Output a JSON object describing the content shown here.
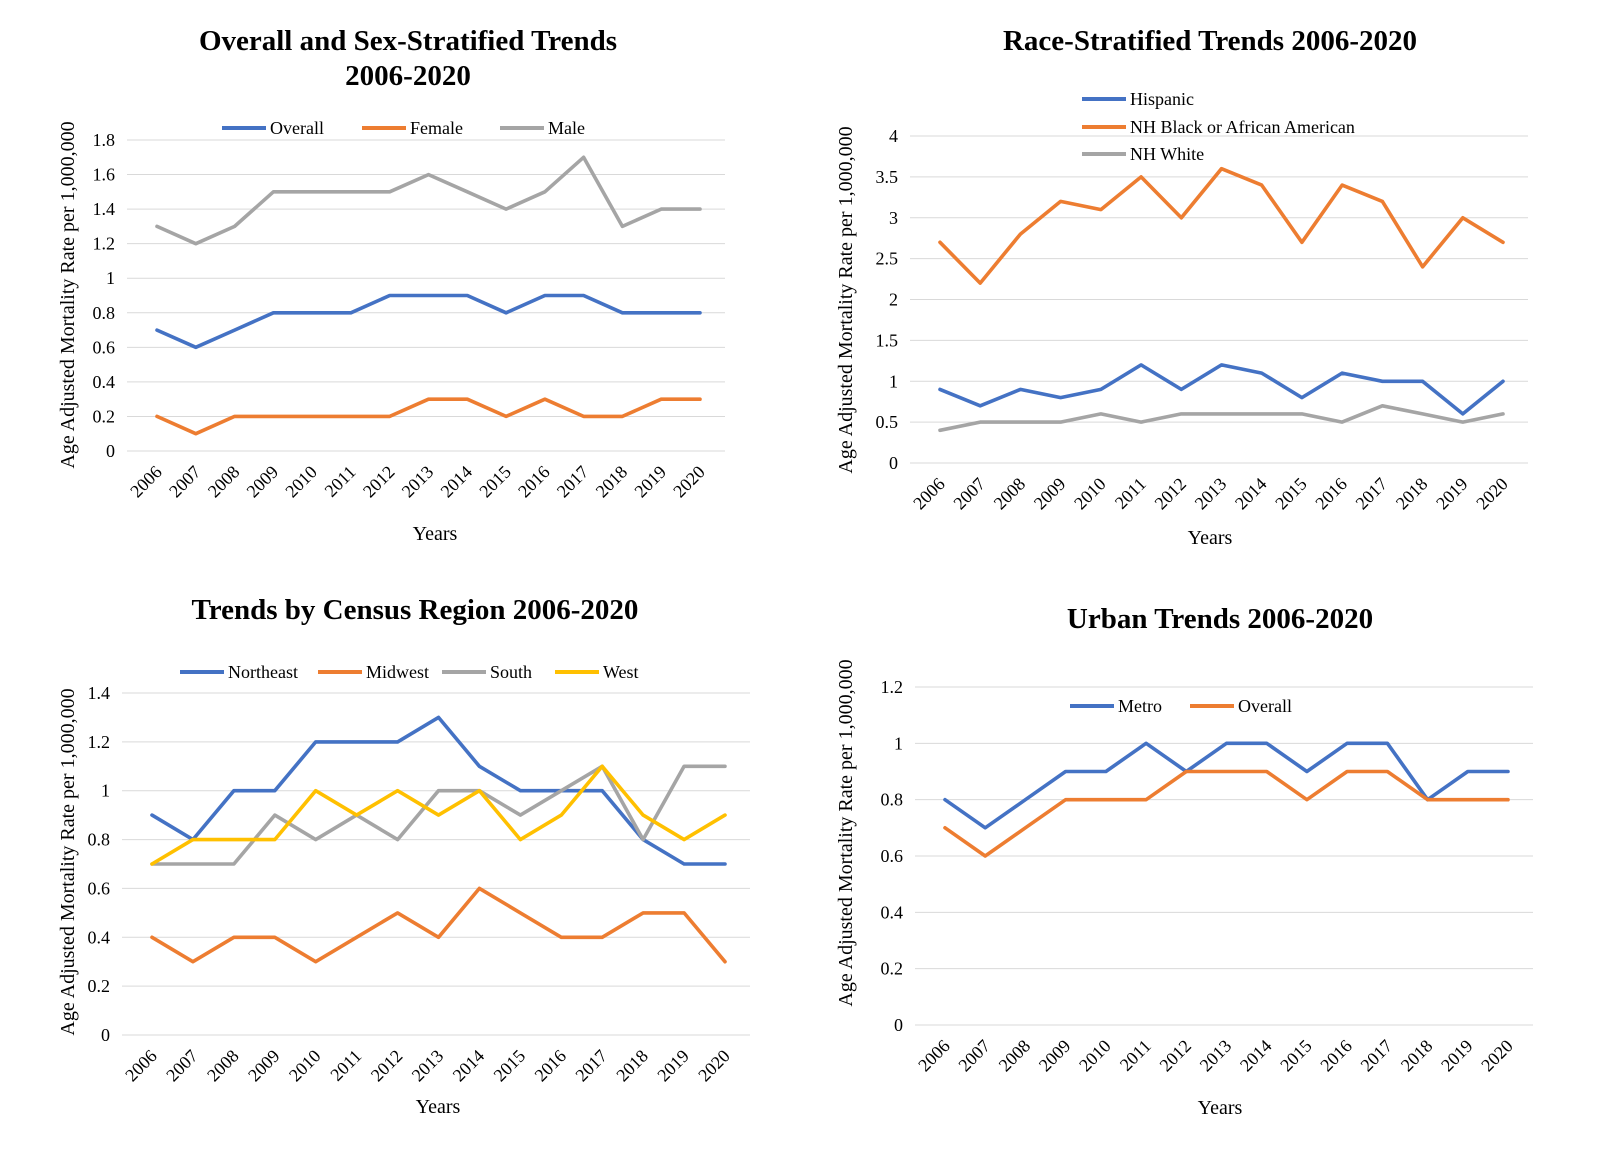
{
  "colors": {
    "blue": "#4472c4",
    "orange": "#ed7d31",
    "gray": "#a5a5a5",
    "yellow": "#ffc000",
    "grid": "#d9d9d9"
  },
  "chart_data": [
    {
      "type": "line",
      "title": "Overall and Sex-Stratified Trends",
      "subtitle": "2006-2020",
      "xlabel": "Years",
      "ylabel": "Age Adjusted Mortality Rate per 1,000,000",
      "ylim": [
        0,
        1.8
      ],
      "yticks": [
        "0",
        "0.2",
        "0.4",
        "0.6",
        "0.8",
        "1",
        "1.2",
        "1.4",
        "1.6",
        "1.8"
      ],
      "grid": true,
      "legend": "top",
      "categories": [
        "2006",
        "2007",
        "2008",
        "2009",
        "2010",
        "2011",
        "2012",
        "2013",
        "2014",
        "2015",
        "2016",
        "2017",
        "2018",
        "2019",
        "2020"
      ],
      "series": [
        {
          "name": "Overall",
          "color": "#4472c4",
          "values": [
            0.7,
            0.6,
            0.7,
            0.8,
            0.8,
            0.8,
            0.9,
            0.9,
            0.9,
            0.8,
            0.9,
            0.9,
            0.8,
            0.8,
            0.8
          ]
        },
        {
          "name": "Female",
          "color": "#ed7d31",
          "values": [
            0.2,
            0.1,
            0.2,
            0.2,
            0.2,
            0.2,
            0.2,
            0.3,
            0.3,
            0.2,
            0.3,
            0.2,
            0.2,
            0.3,
            0.3
          ]
        },
        {
          "name": "Male",
          "color": "#a5a5a5",
          "values": [
            1.3,
            1.2,
            1.3,
            1.5,
            1.5,
            1.5,
            1.5,
            1.6,
            1.5,
            1.4,
            1.5,
            1.7,
            1.3,
            1.4,
            1.4
          ]
        }
      ]
    },
    {
      "type": "line",
      "title": "Race-Stratified Trends 2006-2020",
      "xlabel": "Years",
      "ylabel": "Age Adjusted Mortality Rate per 1,000,000",
      "ylim": [
        0,
        4
      ],
      "yticks": [
        "0",
        "0.5",
        "1",
        "1.5",
        "2",
        "2.5",
        "3",
        "3.5",
        "4"
      ],
      "grid": true,
      "legend": "top-left, stacked",
      "categories": [
        "2006",
        "2007",
        "2008",
        "2009",
        "2010",
        "2011",
        "2012",
        "2013",
        "2014",
        "2015",
        "2016",
        "2017",
        "2018",
        "2019",
        "2020"
      ],
      "series": [
        {
          "name": "Hispanic",
          "color": "#4472c4",
          "values": [
            0.9,
            0.7,
            0.9,
            0.8,
            0.9,
            1.2,
            0.9,
            1.2,
            1.1,
            0.8,
            1.1,
            1.0,
            1.0,
            0.6,
            1.0
          ]
        },
        {
          "name": "NH Black or African American",
          "color": "#ed7d31",
          "values": [
            2.7,
            2.2,
            2.8,
            3.2,
            3.1,
            3.5,
            3.0,
            3.6,
            3.4,
            2.7,
            3.4,
            3.2,
            2.4,
            3.0,
            2.7
          ]
        },
        {
          "name": "NH White",
          "color": "#a5a5a5",
          "values": [
            0.4,
            0.5,
            0.5,
            0.5,
            0.6,
            0.5,
            0.6,
            0.6,
            0.6,
            0.6,
            0.5,
            0.7,
            0.6,
            0.5,
            0.6
          ]
        }
      ]
    },
    {
      "type": "line",
      "title": "Trends by Census Region 2006-2020",
      "xlabel": "Years",
      "ylabel": "Age Adjusted Mortality Rate per 1,000,000",
      "ylim": [
        0,
        1.4
      ],
      "yticks": [
        "0",
        "0.2",
        "0.4",
        "0.6",
        "0.8",
        "1",
        "1.2",
        "1.4"
      ],
      "grid": true,
      "legend": "top",
      "categories": [
        "2006",
        "2007",
        "2008",
        "2009",
        "2010",
        "2011",
        "2012",
        "2013",
        "2014",
        "2015",
        "2016",
        "2017",
        "2018",
        "2019",
        "2020"
      ],
      "series": [
        {
          "name": "Northeast",
          "color": "#4472c4",
          "values": [
            0.9,
            0.8,
            1.0,
            1.0,
            1.2,
            1.2,
            1.2,
            1.3,
            1.1,
            1.0,
            1.0,
            1.0,
            0.8,
            0.7,
            0.7
          ]
        },
        {
          "name": "Midwest",
          "color": "#ed7d31",
          "values": [
            0.4,
            0.3,
            0.4,
            0.4,
            0.3,
            0.4,
            0.5,
            0.4,
            0.6,
            0.5,
            0.4,
            0.4,
            0.5,
            0.5,
            0.3
          ]
        },
        {
          "name": "South",
          "color": "#a5a5a5",
          "values": [
            0.7,
            0.7,
            0.7,
            0.9,
            0.8,
            0.9,
            0.8,
            1.0,
            1.0,
            0.9,
            1.0,
            1.1,
            0.8,
            1.1,
            1.1
          ]
        },
        {
          "name": "West",
          "color": "#ffc000",
          "values": [
            0.7,
            0.8,
            0.8,
            0.8,
            1.0,
            0.9,
            1.0,
            0.9,
            1.0,
            0.8,
            0.9,
            1.1,
            0.9,
            0.8,
            0.9
          ]
        }
      ]
    },
    {
      "type": "line",
      "title": "Urban Trends 2006-2020",
      "xlabel": "Years",
      "ylabel": "Age Adjusted Mortality Rate per 1,000,000",
      "ylim": [
        0,
        1.2
      ],
      "yticks": [
        "0",
        "0.2",
        "0.4",
        "0.6",
        "0.8",
        "1",
        "1.2"
      ],
      "grid": true,
      "legend": "top",
      "categories": [
        "2006",
        "2007",
        "2008",
        "2009",
        "2010",
        "2011",
        "2012",
        "2013",
        "2014",
        "2015",
        "2016",
        "2017",
        "2018",
        "2019",
        "2020"
      ],
      "series": [
        {
          "name": "Metro",
          "color": "#4472c4",
          "values": [
            0.8,
            0.7,
            0.8,
            0.9,
            0.9,
            1.0,
            0.9,
            1.0,
            1.0,
            0.9,
            1.0,
            1.0,
            0.8,
            0.9,
            0.9
          ]
        },
        {
          "name": "Overall",
          "color": "#ed7d31",
          "values": [
            0.7,
            0.6,
            0.7,
            0.8,
            0.8,
            0.8,
            0.9,
            0.9,
            0.9,
            0.8,
            0.9,
            0.9,
            0.8,
            0.8,
            0.8
          ]
        }
      ]
    }
  ]
}
